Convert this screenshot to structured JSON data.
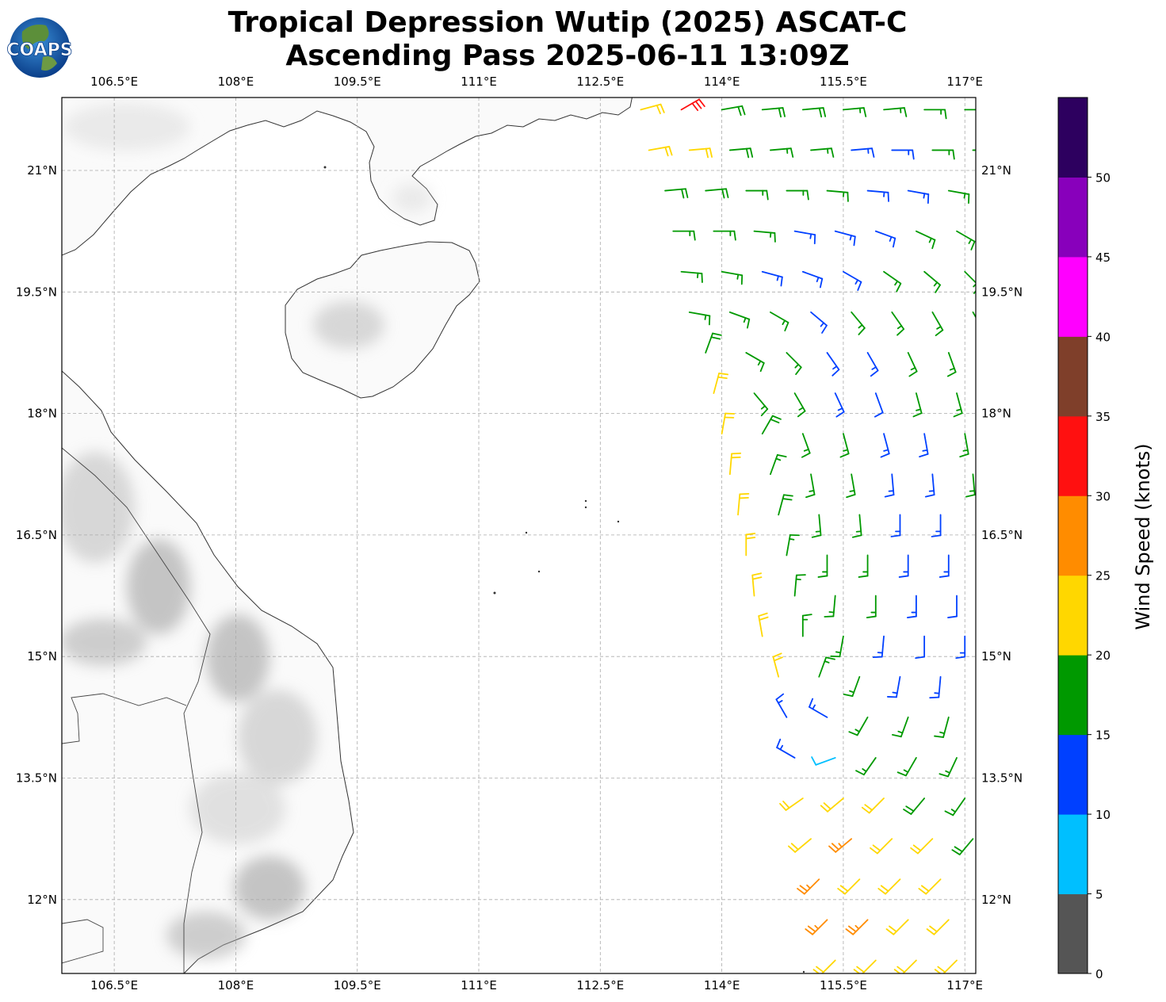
{
  "title": {
    "line1": "Tropical Depression Wutip (2025) ASCAT-C",
    "line2": "Ascending Pass 2025-06-11 13:09Z"
  },
  "logo": {
    "text": "COAPS"
  },
  "chart_data": {
    "type": "wind-barb-map",
    "lon_ticks": [
      "106.5°E",
      "108°E",
      "109.5°E",
      "111°E",
      "112.5°E",
      "114°E",
      "115.5°E",
      "117°E"
    ],
    "lon_tick_values": [
      106.5,
      108,
      109.5,
      111,
      112.5,
      114,
      115.5,
      117
    ],
    "lat_ticks": [
      "21°N",
      "19.5°N",
      "18°N",
      "16.5°N",
      "15°N",
      "13.5°N",
      "12°N"
    ],
    "lat_tick_values": [
      21,
      19.5,
      18,
      16.5,
      15,
      13.5,
      12
    ],
    "lon_range": [
      105.85,
      117.15
    ],
    "lat_range": [
      11.1,
      21.9
    ],
    "grid": true,
    "barb_grid_step_deg": 0.5,
    "barb_rows": [
      {
        "lat": 21.75,
        "lon0": 113.0,
        "spd": [
          22,
          32,
          18,
          18,
          18,
          17,
          17,
          17,
          17
        ],
        "dir": [
          75,
          60,
          80,
          85,
          85,
          85,
          85,
          90,
          90
        ]
      },
      {
        "lat": 21.25,
        "lon0": 113.1,
        "spd": [
          22,
          22,
          18,
          17,
          17,
          13,
          13,
          17,
          17
        ],
        "dir": [
          80,
          85,
          85,
          85,
          85,
          85,
          90,
          90,
          90
        ]
      },
      {
        "lat": 20.75,
        "lon0": 113.3,
        "spd": [
          18,
          18,
          17,
          17,
          16,
          13,
          13,
          17
        ],
        "dir": [
          85,
          85,
          90,
          90,
          95,
          95,
          100,
          100
        ]
      },
      {
        "lat": 20.25,
        "lon0": 113.4,
        "spd": [
          17,
          17,
          16,
          13,
          13,
          13,
          16,
          17
        ],
        "dir": [
          90,
          90,
          95,
          100,
          105,
          110,
          115,
          120
        ]
      },
      {
        "lat": 19.75,
        "lon0": 113.5,
        "spd": [
          17,
          17,
          13,
          13,
          13,
          16,
          16,
          17
        ],
        "dir": [
          95,
          100,
          105,
          110,
          120,
          125,
          130,
          135
        ]
      },
      {
        "lat": 19.25,
        "lon0": 113.6,
        "spd": [
          17,
          17,
          16,
          13,
          16,
          16,
          17,
          17
        ],
        "dir": [
          100,
          110,
          120,
          130,
          140,
          145,
          150,
          150
        ]
      },
      {
        "lat": 18.75,
        "lon0": 113.8,
        "spd": [
          18,
          17,
          16,
          13,
          13,
          16,
          17
        ],
        "dir": [
          20,
          120,
          135,
          145,
          150,
          155,
          160
        ]
      },
      {
        "lat": 18.25,
        "lon0": 113.9,
        "spd": [
          21,
          17,
          16,
          13,
          12,
          16,
          17
        ],
        "dir": [
          15,
          140,
          150,
          155,
          160,
          165,
          165
        ]
      },
      {
        "lat": 17.75,
        "lon0": 114.0,
        "spd": [
          22,
          18,
          17,
          16,
          13,
          13,
          17
        ],
        "dir": [
          10,
          30,
          160,
          165,
          165,
          170,
          170
        ]
      },
      {
        "lat": 17.25,
        "lon0": 114.1,
        "spd": [
          22,
          17,
          17,
          16,
          13,
          13,
          17
        ],
        "dir": [
          5,
          20,
          170,
          170,
          175,
          175,
          175
        ]
      },
      {
        "lat": 16.75,
        "lon0": 114.2,
        "spd": [
          22,
          18,
          17,
          16,
          13,
          13
        ],
        "dir": [
          5,
          15,
          175,
          175,
          180,
          180
        ]
      },
      {
        "lat": 16.25,
        "lon0": 114.3,
        "spd": [
          22,
          17,
          17,
          16,
          13,
          13
        ],
        "dir": [
          0,
          10,
          180,
          180,
          180,
          180
        ]
      },
      {
        "lat": 15.75,
        "lon0": 114.4,
        "spd": [
          22,
          17,
          16,
          16,
          13,
          12
        ],
        "dir": [
          355,
          5,
          185,
          180,
          180,
          180
        ]
      },
      {
        "lat": 15.25,
        "lon0": 114.5,
        "spd": [
          21,
          17,
          16,
          13,
          12,
          13
        ],
        "dir": [
          350,
          0,
          190,
          185,
          180,
          180
        ]
      },
      {
        "lat": 14.75,
        "lon0": 114.7,
        "spd": [
          21,
          17,
          16,
          13,
          13
        ],
        "dir": [
          345,
          20,
          200,
          190,
          185
        ]
      },
      {
        "lat": 14.25,
        "lon0": 114.8,
        "spd": [
          13,
          13,
          17,
          16,
          16
        ],
        "dir": [
          330,
          300,
          210,
          200,
          195
        ]
      },
      {
        "lat": 13.75,
        "lon0": 114.9,
        "spd": [
          13,
          8,
          17,
          17,
          17
        ],
        "dir": [
          300,
          250,
          215,
          210,
          205
        ]
      },
      {
        "lat": 13.25,
        "lon0": 115.0,
        "spd": [
          22,
          21,
          21,
          18,
          17
        ],
        "dir": [
          235,
          230,
          225,
          220,
          215
        ]
      },
      {
        "lat": 12.75,
        "lon0": 115.1,
        "spd": [
          22,
          27,
          22,
          22,
          18
        ],
        "dir": [
          230,
          230,
          225,
          225,
          220
        ]
      },
      {
        "lat": 12.25,
        "lon0": 115.2,
        "spd": [
          27,
          22,
          22,
          21
        ],
        "dir": [
          225,
          225,
          225,
          225
        ]
      },
      {
        "lat": 11.75,
        "lon0": 115.3,
        "spd": [
          27,
          27,
          22,
          22
        ],
        "dir": [
          225,
          225,
          225,
          225
        ]
      },
      {
        "lat": 11.25,
        "lon0": 115.4,
        "spd": [
          22,
          22,
          22,
          22
        ],
        "dir": [
          225,
          225,
          225,
          225
        ]
      }
    ],
    "colorbar": {
      "label": "Wind Speed (knots)",
      "bounds": [
        0,
        5,
        10,
        15,
        20,
        25,
        30,
        35,
        40,
        45,
        50,
        55
      ],
      "tick_labels": [
        "0",
        "5",
        "10",
        "15",
        "20",
        "25",
        "30",
        "35",
        "40",
        "45",
        "50"
      ],
      "colors": [
        "#555555",
        "#00bfff",
        "#0040ff",
        "#009900",
        "#ffd700",
        "#ff8c00",
        "#ff1010",
        "#7f3f2a",
        "#ff00ff",
        "#8800bb",
        "#2d005f"
      ]
    }
  }
}
